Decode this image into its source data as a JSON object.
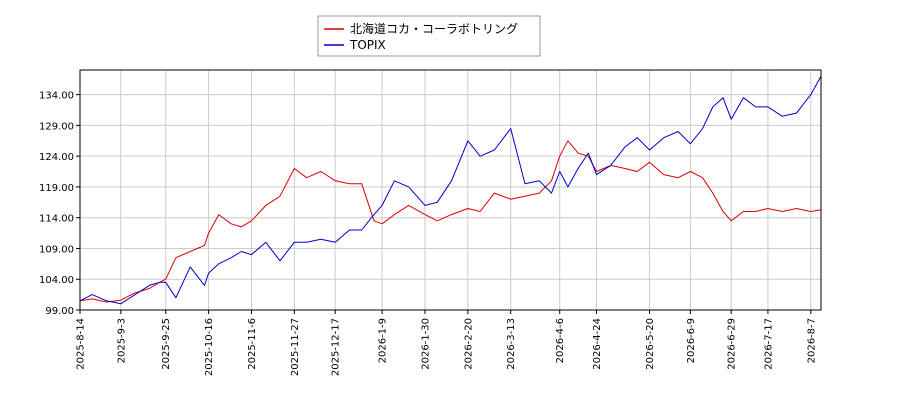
{
  "chart_data": {
    "type": "line",
    "title": "",
    "xlabel": "",
    "ylabel": "",
    "ylim": [
      99.0,
      138.0
    ],
    "yticks": [
      "99.00",
      "104.00",
      "109.00",
      "114.00",
      "119.00",
      "124.00",
      "129.00",
      "134.00"
    ],
    "grid": true,
    "legend_position": "top-center",
    "xticks": [
      "2025-8-14",
      "2025-9-3",
      "2025-9-25",
      "2025-10-16",
      "2025-11-6",
      "2025-11-27",
      "2025-12-17",
      "2026-1-9",
      "2026-1-30",
      "2026-2-20",
      "2026-3-13",
      "2026-4-6",
      "2026-4-24",
      "2026-5-20",
      "2026-6-9",
      "2026-6-29",
      "2026-7-17",
      "2026-8-7"
    ],
    "series": [
      {
        "name": "北海道コカ・コーラボトリング",
        "color": "#dd0000",
        "x": [
          "2025-8-14",
          "2025-8-20",
          "2025-8-27",
          "2025-9-3",
          "2025-9-10",
          "2025-9-17",
          "2025-9-22",
          "2025-9-25",
          "2025-9-30",
          "2025-10-7",
          "2025-10-14",
          "2025-10-16",
          "2025-10-21",
          "2025-10-27",
          "2025-11-1",
          "2025-11-6",
          "2025-11-13",
          "2025-11-20",
          "2025-11-27",
          "2025-12-3",
          "2025-12-10",
          "2025-12-17",
          "2025-12-24",
          "2025-12-30",
          "2026-1-5",
          "2026-1-9",
          "2026-1-15",
          "2026-1-22",
          "2026-1-30",
          "2026-2-5",
          "2026-2-12",
          "2026-2-20",
          "2026-2-26",
          "2026-3-5",
          "2026-3-13",
          "2026-3-20",
          "2026-3-27",
          "2026-4-2",
          "2026-4-6",
          "2026-4-10",
          "2026-4-15",
          "2026-4-20",
          "2026-4-24",
          "2026-5-1",
          "2026-5-8",
          "2026-5-14",
          "2026-5-20",
          "2026-5-27",
          "2026-6-3",
          "2026-6-9",
          "2026-6-15",
          "2026-6-20",
          "2026-6-25",
          "2026-6-29",
          "2026-7-5",
          "2026-7-11",
          "2026-7-17",
          "2026-7-24",
          "2026-7-31",
          "2026-8-7",
          "2026-8-12"
        ],
        "values": [
          100.5,
          100.8,
          100.3,
          100.6,
          101.8,
          102.5,
          103.5,
          104.0,
          107.5,
          108.5,
          109.5,
          111.5,
          114.5,
          113.0,
          112.5,
          113.5,
          116.0,
          117.5,
          122.0,
          120.5,
          121.5,
          120.0,
          119.5,
          119.5,
          113.5,
          113.0,
          114.5,
          116.0,
          114.5,
          113.5,
          114.5,
          115.5,
          115.0,
          118.0,
          117.0,
          117.5,
          118.0,
          120.0,
          124.0,
          126.5,
          124.5,
          124.0,
          121.5,
          122.5,
          122.0,
          121.5,
          123.0,
          121.0,
          120.5,
          121.5,
          120.5,
          118.0,
          115.0,
          113.5,
          115.0,
          115.0,
          115.5,
          115.0,
          115.5,
          115.0,
          115.3
        ]
      },
      {
        "name": "TOPIX",
        "color": "#0000cc",
        "x": [
          "2025-8-14",
          "2025-8-20",
          "2025-8-27",
          "2025-9-3",
          "2025-9-10",
          "2025-9-17",
          "2025-9-22",
          "2025-9-25",
          "2025-9-30",
          "2025-10-7",
          "2025-10-14",
          "2025-10-16",
          "2025-10-21",
          "2025-10-27",
          "2025-11-1",
          "2025-11-6",
          "2025-11-13",
          "2025-11-20",
          "2025-11-27",
          "2025-12-3",
          "2025-12-10",
          "2025-12-17",
          "2025-12-24",
          "2025-12-30",
          "2026-1-5",
          "2026-1-9",
          "2026-1-15",
          "2026-1-22",
          "2026-1-30",
          "2026-2-5",
          "2026-2-12",
          "2026-2-20",
          "2026-2-26",
          "2026-3-5",
          "2026-3-13",
          "2026-3-20",
          "2026-3-27",
          "2026-4-2",
          "2026-4-6",
          "2026-4-10",
          "2026-4-15",
          "2026-4-20",
          "2026-4-24",
          "2026-5-1",
          "2026-5-8",
          "2026-5-14",
          "2026-5-20",
          "2026-5-27",
          "2026-6-3",
          "2026-6-9",
          "2026-6-15",
          "2026-6-20",
          "2026-6-25",
          "2026-6-29",
          "2026-7-5",
          "2026-7-11",
          "2026-7-17",
          "2026-7-24",
          "2026-7-31",
          "2026-8-7",
          "2026-8-12"
        ],
        "values": [
          100.5,
          101.5,
          100.5,
          100.0,
          101.5,
          103.0,
          103.5,
          103.5,
          101.0,
          106.0,
          103.0,
          105.0,
          106.5,
          107.5,
          108.5,
          108.0,
          110.0,
          107.0,
          110.0,
          110.0,
          110.5,
          110.0,
          112.0,
          112.0,
          114.5,
          116.0,
          120.0,
          119.0,
          116.0,
          116.5,
          120.0,
          126.5,
          124.0,
          125.0,
          128.5,
          119.5,
          120.0,
          118.0,
          121.5,
          119.0,
          122.0,
          124.5,
          121.0,
          122.5,
          125.5,
          127.0,
          125.0,
          127.0,
          128.0,
          126.0,
          128.5,
          132.0,
          133.5,
          130.0,
          133.5,
          132.0,
          132.0,
          130.5,
          131.0,
          134.0,
          137.0
        ]
      }
    ]
  }
}
